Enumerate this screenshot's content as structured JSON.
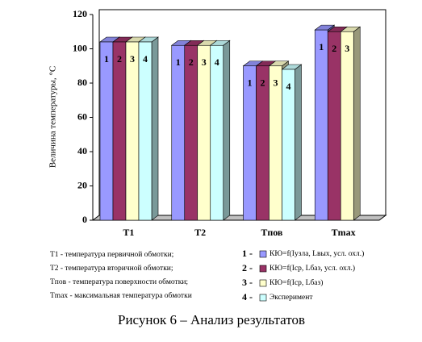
{
  "chart_data": {
    "type": "bar3d",
    "y_label": "Величина температуры, °С",
    "categories": [
      "T1",
      "T2",
      "Tпов",
      "Tmax"
    ],
    "series": [
      {
        "name": "КЮ=f(Iузла, Lвых, усл. охл.)",
        "legend_label": "1 -",
        "bar_label": "1",
        "color": "#9999ff",
        "values": [
          104,
          102,
          90,
          111
        ]
      },
      {
        "name": "КЮ=f(Icp, Lбаз, усл. охл.)",
        "legend_label": "2 -",
        "bar_label": "2",
        "color": "#993366",
        "values": [
          104,
          102,
          90,
          110
        ]
      },
      {
        "name": "КЮ=f(Icp, Lбаз)",
        "legend_label": "3 -",
        "bar_label": "3",
        "color": "#ffffcc",
        "values": [
          104,
          102,
          90,
          110
        ]
      },
      {
        "name": "Эксперимент",
        "legend_label": "4 -",
        "bar_label": "4",
        "color": "#ccffff",
        "values": [
          104,
          102,
          88,
          null
        ]
      }
    ],
    "ylim": [
      0,
      120
    ],
    "yticks": [
      0,
      20,
      40,
      60,
      80,
      100,
      120
    ],
    "notes": [
      "T1 - температура первичной обмотки;",
      "T2 - температура вторичной обмотки;",
      "Tпов - температура поверхности обмотки;",
      "Tmax - максимальная температура обмотки"
    ],
    "caption": "Рисунок 6 – Анализ результатов"
  }
}
